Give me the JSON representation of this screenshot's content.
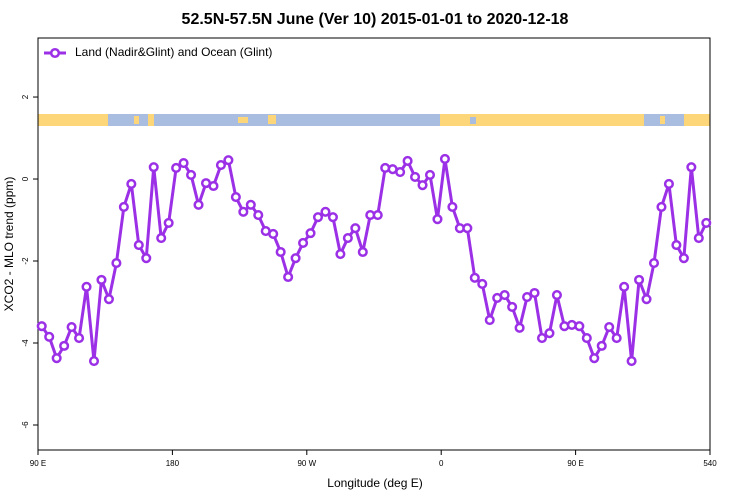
{
  "chart_data": {
    "type": "line",
    "title": "52.5N-57.5N June (Ver 10)   2015-01-01 to 2020-12-18",
    "x_label": "Longitude (deg E)",
    "y_label": "XCO2 - MLO trend (ppm)",
    "xlim": [
      90,
      540
    ],
    "xticks": [
      {
        "value": 90,
        "label": "90 E"
      },
      180,
      {
        "value": 270,
        "label": "90 W"
      },
      {
        "value": 360,
        "label": "0"
      },
      {
        "value": 450,
        "label": "90 E"
      },
      540
    ],
    "ylim": [
      -6.61,
      3.44
    ],
    "yticks": [
      -6,
      -4,
      -2,
      0,
      2
    ],
    "legend": "top-left",
    "x": [
      92.5,
      97.5,
      102.5,
      107.5,
      112.5,
      117.5,
      122.5,
      127.5,
      132.5,
      137.5,
      142.5,
      147.5,
      152.5,
      157.5,
      162.5,
      167.5,
      172.5,
      177.5,
      182.5,
      187.5,
      192.5,
      197.5,
      202.5,
      207.5,
      212.5,
      217.5,
      222.5,
      227.5,
      232.5,
      237.5,
      242.5,
      247.5,
      252.5,
      257.5,
      262.5,
      267.5,
      272.5,
      277.5,
      282.5,
      287.5,
      292.5,
      297.5,
      302.5,
      307.5,
      312.5,
      317.5,
      322.5,
      327.5,
      332.5,
      337.5,
      342.5,
      347.5,
      352.5,
      357.5,
      362.5,
      367.5,
      372.5,
      377.5,
      382.5,
      387.5,
      392.5,
      397.5,
      402.5,
      407.5,
      412.5,
      417.5,
      422.5,
      427.5,
      432.5,
      437.5,
      442.5,
      447.5,
      452.5,
      457.5,
      462.5,
      467.5,
      472.5,
      477.5,
      482.5,
      487.5,
      492.5,
      497.5,
      502.5,
      507.5,
      512.5,
      517.5,
      522.5,
      527.5,
      532.5,
      537.5
    ],
    "series": [
      {
        "name": "Land (Nadir&Glint) and Ocean (Glint)",
        "color": "#9b30e6",
        "values": [
          -3.59,
          -3.85,
          -4.37,
          -4.07,
          -3.61,
          -3.88,
          -2.63,
          -4.44,
          -2.46,
          -2.93,
          -2.05,
          -0.68,
          -0.12,
          -1.61,
          -1.93,
          0.29,
          -1.44,
          -1.07,
          0.27,
          0.39,
          0.1,
          -0.63,
          -0.1,
          -0.17,
          0.34,
          0.46,
          -0.44,
          -0.8,
          -0.63,
          -0.88,
          -1.27,
          -1.34,
          -1.78,
          -2.39,
          -1.93,
          -1.56,
          -1.32,
          -0.93,
          -0.8,
          -0.93,
          -1.83,
          -1.44,
          -1.2,
          -1.78,
          -0.88,
          -0.88,
          0.27,
          0.24,
          0.17,
          0.44,
          0.05,
          -0.15,
          0.1,
          -0.98,
          0.49,
          -0.68,
          -1.2,
          -1.2,
          -2.41,
          -2.56,
          -3.44,
          -2.9,
          -2.83,
          -3.12,
          -3.63,
          -2.88,
          -2.78,
          -3.88,
          -3.76,
          -2.83,
          -3.59,
          -3.56,
          -3.59,
          -3.88,
          -4.37,
          -4.07,
          -3.61,
          -3.88,
          -2.63,
          -4.44,
          -2.46,
          -2.93,
          -2.05,
          -0.68,
          -0.12,
          -1.61,
          -1.93,
          0.29,
          -1.44,
          -1.07
        ]
      }
    ]
  }
}
